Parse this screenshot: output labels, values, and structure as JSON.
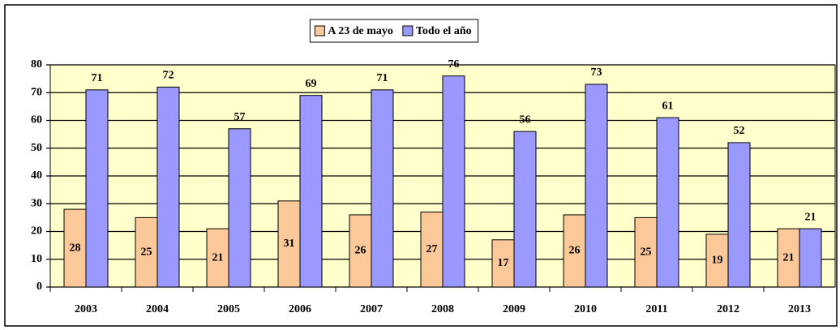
{
  "chart_data": {
    "type": "bar",
    "categories": [
      "2003",
      "2004",
      "2005",
      "2006",
      "2007",
      "2008",
      "2009",
      "2010",
      "2011",
      "2012",
      "2013"
    ],
    "series": [
      {
        "name": "A 23 de mayo",
        "color": "#fbc89a",
        "values": [
          28,
          25,
          21,
          31,
          26,
          27,
          17,
          26,
          25,
          19,
          21
        ]
      },
      {
        "name": "Todo el año",
        "color": "#9999ff",
        "values": [
          71,
          72,
          57,
          69,
          71,
          76,
          56,
          73,
          61,
          52,
          21
        ]
      }
    ],
    "ylim": [
      0,
      80
    ],
    "yticks": [
      0,
      10,
      20,
      30,
      40,
      50,
      60,
      70,
      80
    ],
    "grid": true,
    "legend": "top"
  }
}
